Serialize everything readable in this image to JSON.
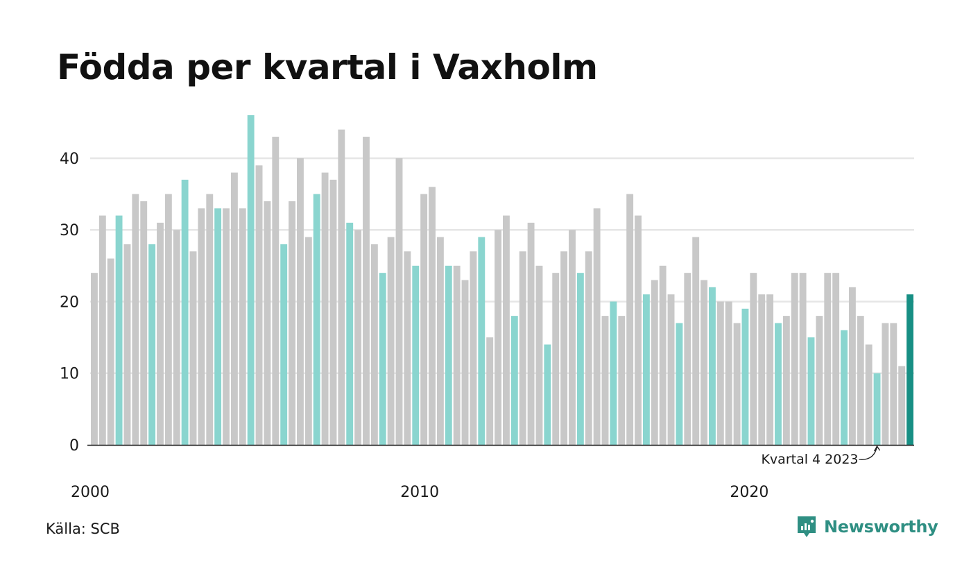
{
  "chart_data": {
    "type": "bar",
    "title": "Födda per kvartal i Vaxholm",
    "xlabel": "",
    "ylabel": "",
    "ylim": [
      0,
      46
    ],
    "yticks": [
      0,
      10,
      20,
      30,
      40
    ],
    "xticks": [
      {
        "label": "2000",
        "index": 0
      },
      {
        "label": "2010",
        "index": 40
      },
      {
        "label": "2020",
        "index": 80
      }
    ],
    "start_year": 2000,
    "grid": true,
    "legend": "none",
    "colors": {
      "default": "#c8c8c8",
      "quarter1": "#8ad5cf",
      "latest": "#178f84",
      "gridline": "#e6e6e6",
      "axis": "#1a1a1a"
    },
    "categories": [
      "2000 K1",
      "2000 K2",
      "2000 K3",
      "2000 K4",
      "2001 K1",
      "2001 K2",
      "2001 K3",
      "2001 K4",
      "2002 K1",
      "2002 K2",
      "2002 K3",
      "2002 K4",
      "2003 K1",
      "2003 K2",
      "2003 K3",
      "2003 K4",
      "2004 K1",
      "2004 K2",
      "2004 K3",
      "2004 K4",
      "2005 K1",
      "2005 K2",
      "2005 K3",
      "2005 K4",
      "2006 K1",
      "2006 K2",
      "2006 K3",
      "2006 K4",
      "2007 K1",
      "2007 K2",
      "2007 K3",
      "2007 K4",
      "2008 K1",
      "2008 K2",
      "2008 K3",
      "2008 K4",
      "2009 K1",
      "2009 K2",
      "2009 K3",
      "2009 K4",
      "2010 K1",
      "2010 K2",
      "2010 K3",
      "2010 K4",
      "2011 K1",
      "2011 K2",
      "2011 K3",
      "2011 K4",
      "2012 K1",
      "2012 K2",
      "2012 K3",
      "2012 K4",
      "2013 K1",
      "2013 K2",
      "2013 K3",
      "2013 K4",
      "2014 K1",
      "2014 K2",
      "2014 K3",
      "2014 K4",
      "2015 K1",
      "2015 K2",
      "2015 K3",
      "2015 K4",
      "2016 K1",
      "2016 K2",
      "2016 K3",
      "2016 K4",
      "2017 K1",
      "2017 K2",
      "2017 K3",
      "2017 K4",
      "2018 K1",
      "2018 K2",
      "2018 K3",
      "2018 K4",
      "2019 K1",
      "2019 K2",
      "2019 K3",
      "2019 K4",
      "2020 K1",
      "2020 K2",
      "2020 K3",
      "2020 K4",
      "2021 K1",
      "2021 K2",
      "2021 K3",
      "2021 K4",
      "2022 K1",
      "2022 K2",
      "2022 K3",
      "2022 K4",
      "2023 K1",
      "2023 K2",
      "2023 K3",
      "2023 K4",
      "2024 K1",
      "2024 K2",
      "2024 K3",
      "2024 K4"
    ],
    "values": [
      24,
      32,
      26,
      32,
      28,
      35,
      34,
      28,
      31,
      35,
      30,
      37,
      27,
      33,
      35,
      33,
      33,
      38,
      33,
      46,
      39,
      34,
      43,
      28,
      34,
      40,
      29,
      35,
      38,
      37,
      44,
      31,
      30,
      43,
      28,
      24,
      29,
      40,
      27,
      25,
      35,
      36,
      29,
      25,
      25,
      23,
      27,
      29,
      15,
      30,
      32,
      18,
      27,
      31,
      25,
      14,
      24,
      27,
      30,
      24,
      27,
      33,
      18,
      20,
      18,
      35,
      32,
      21,
      23,
      25,
      21,
      17,
      24,
      29,
      23,
      22,
      20,
      20,
      17,
      19,
      24,
      21,
      21,
      17,
      18,
      24,
      24,
      15,
      18,
      24,
      24,
      16,
      22,
      18,
      14,
      10,
      17,
      17,
      11,
      21
    ],
    "annotation": {
      "text": "Kvartal 4 2023",
      "index": 95
    }
  },
  "footer": {
    "source": "Källa: SCB",
    "brand": "Newsworthy"
  }
}
